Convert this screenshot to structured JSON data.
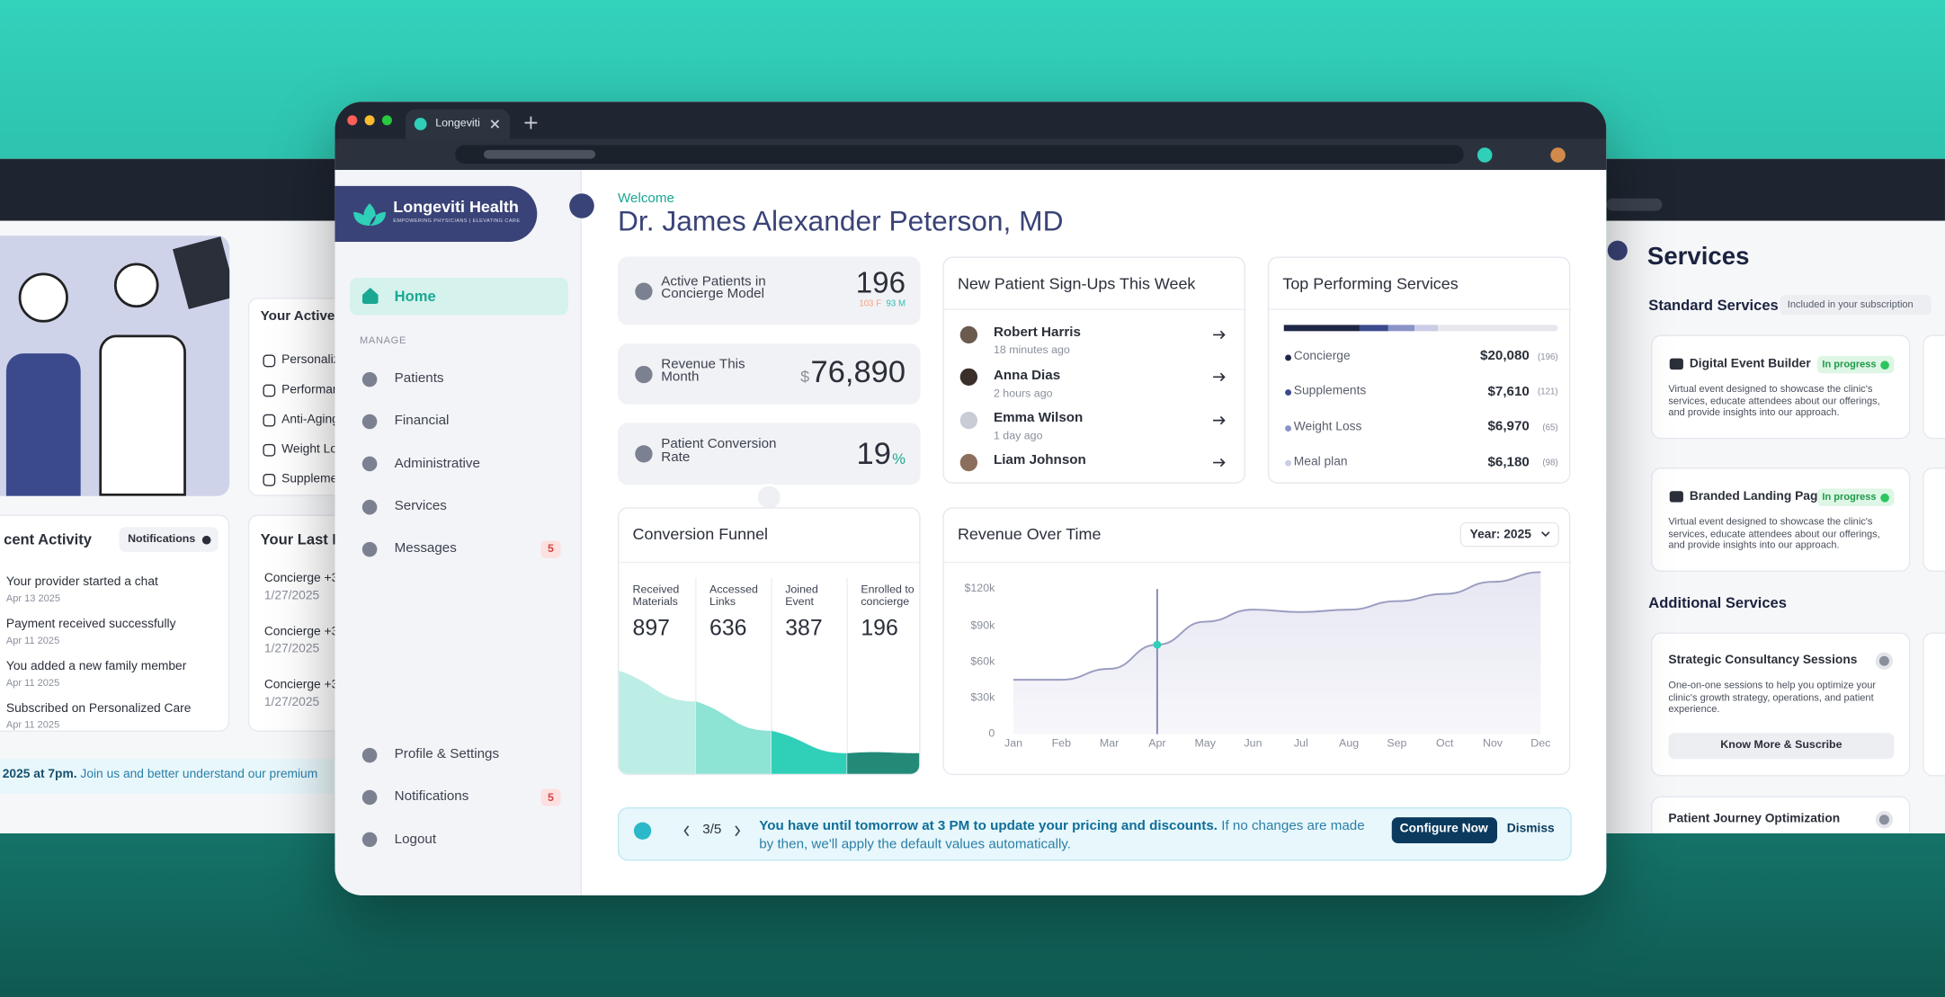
{
  "browser": {
    "tab_title": "Longeviti"
  },
  "sidebar": {
    "brand": "Longeviti Health",
    "tagline": "EMPOWERING PHYSICIANS | ELEVATING CARE",
    "home": "Home",
    "manage_label": "MANAGE",
    "manage": [
      {
        "label": "Patients"
      },
      {
        "label": "Financial"
      },
      {
        "label": "Administrative"
      },
      {
        "label": "Services"
      },
      {
        "label": "Messages",
        "badge": 5
      }
    ],
    "footer": [
      {
        "label": "Profile & Settings"
      },
      {
        "label": "Notifications",
        "badge": 5
      },
      {
        "label": "Logout"
      }
    ]
  },
  "header": {
    "welcome": "Welcome",
    "name": "Dr. James Alexander Peterson, MD"
  },
  "stats": {
    "active": {
      "label": "Active Patients in Concierge Model",
      "value": 196,
      "female": "103 F",
      "male": "93 M"
    },
    "revenue": {
      "label": "Revenue This Month",
      "currency": "$",
      "value": "76,890"
    },
    "conversion": {
      "label": "Patient Conversion Rate",
      "value": 19,
      "unit": "%"
    }
  },
  "signups": {
    "title": "New Patient Sign-Ups This Week",
    "people": [
      {
        "name": "Robert Harris",
        "time": "18 minutes ago"
      },
      {
        "name": "Anna Dias",
        "time": "2 hours ago"
      },
      {
        "name": "Emma Wilson",
        "time": "1 day ago"
      },
      {
        "name": "Liam Johnson",
        "time": ""
      }
    ]
  },
  "top_services": {
    "title": "Top Performing Services",
    "items": [
      {
        "name": "Concierge",
        "value": 20080,
        "value_label": "$20,080",
        "count": "(196)",
        "color": "#1f2747"
      },
      {
        "name": "Supplements",
        "value": 7610,
        "value_label": "$7,610",
        "count": "(121)",
        "color": "#3a4a8c"
      },
      {
        "name": "Weight Loss",
        "value": 6970,
        "value_label": "$6,970",
        "count": "(65)",
        "color": "#8a93c8"
      },
      {
        "name": "Meal plan",
        "value": 6180,
        "value_label": "$6,180",
        "count": "(98)",
        "color": "#c9cde6"
      }
    ]
  },
  "funnel": {
    "title": "Conversion Funnel",
    "stages": [
      {
        "label": "Received Materials",
        "value": 897,
        "color": "#bdeee6"
      },
      {
        "label": "Accessed Links",
        "value": 636,
        "color": "#8de3d4"
      },
      {
        "label": "Joined Event",
        "value": 387,
        "color": "#2fcfb8"
      },
      {
        "label": "Enrolled to concierge",
        "value": 196,
        "color": "#238a78"
      }
    ]
  },
  "revenue_chart": {
    "type": "area",
    "title": "Revenue Over Time",
    "filter": "Year: 2025",
    "categories": [
      "Jan",
      "Feb",
      "Mar",
      "Apr",
      "May",
      "Jun",
      "Jul",
      "Aug",
      "Sep",
      "Oct",
      "Nov",
      "Dec"
    ],
    "values": [
      45000,
      45000,
      54000,
      74000,
      93000,
      103000,
      101000,
      103000,
      110000,
      116000,
      126000,
      134000
    ],
    "ylim": [
      0,
      135000
    ],
    "yticks": [
      0,
      {
        "value": 30000,
        "label": "$30k"
      },
      {
        "value": 60000,
        "label": "$60k"
      },
      {
        "value": 90000,
        "label": "$90k"
      },
      {
        "value": 120000,
        "label": "$120k"
      }
    ],
    "highlight": "Apr",
    "color": "#9a9cc0"
  },
  "banner": {
    "page": "3/5",
    "headline": "You have until tomorrow at 3 PM to update your pricing and discounts.",
    "detail": "If no changes are made by then, we'll apply the default values automatically.",
    "primary_action": "Configure Now",
    "secondary_action": "Dismiss"
  },
  "left_window": {
    "active_title": "Your Active S",
    "active_items": [
      "Personaliz",
      "Performan",
      "Anti-Aging",
      "Weight Lo",
      "Suppleme"
    ],
    "activity_title": "cent Activity",
    "notifications": "Notifications",
    "activity": [
      {
        "text": "Your provider started a chat",
        "date": "Apr 13 2025"
      },
      {
        "text": "Payment received successfully",
        "date": "Apr 11 2025"
      },
      {
        "text": "You added a new family member",
        "date": "Apr 11 2025"
      },
      {
        "text": "Subscribed on Personalized Care",
        "date": "Apr 11 2025"
      }
    ],
    "payments_title": "Your Last Pay",
    "payments": [
      {
        "text": "Concierge +3",
        "date": "1/27/2025"
      },
      {
        "text": "Concierge +3",
        "date": "1/27/2025"
      },
      {
        "text": "Concierge +3",
        "date": "1/27/2025"
      }
    ],
    "banner_bold": "2025 at 7pm.",
    "banner_text": "Join us and better understand our premium"
  },
  "right_window": {
    "title": "Services",
    "standard": "Standard Services",
    "included": "Included in your subscription",
    "standard_items": [
      {
        "name": "Digital Event Builder",
        "status": "In progress",
        "desc": "Virtual event designed to showcase the clinic's services, educate attendees about our offerings, and provide insights into our approach."
      },
      {
        "name": "Branded Landing Page",
        "status": "In progress",
        "desc": "Virtual event designed to showcase the clinic's services, educate attendees about our offerings, and provide insights into our approach."
      }
    ],
    "additional": "Additional Services",
    "additional_items": [
      {
        "name": "Strategic Consultancy Sessions",
        "desc": "One-on-one sessions to help you optimize your clinic's growth strategy, operations, and patient experience.",
        "action": "Know More & Suscribe"
      },
      {
        "name": "Patient Journey Optimization"
      }
    ]
  }
}
